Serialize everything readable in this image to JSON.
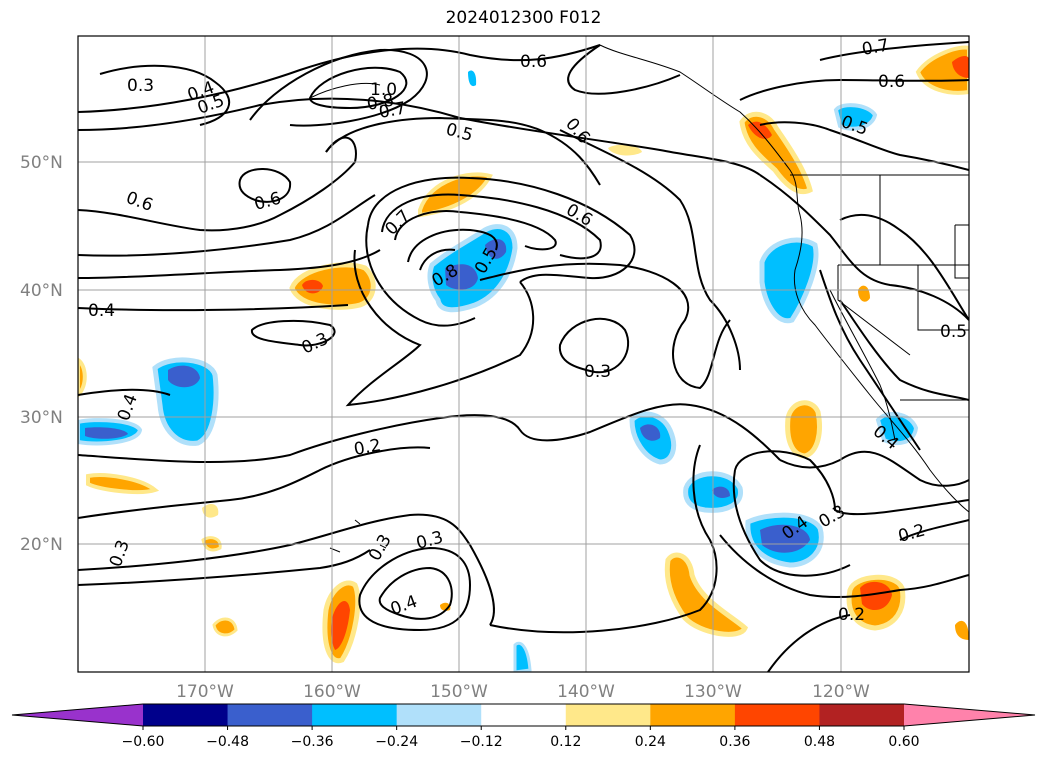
{
  "title": "2024012300 F012",
  "lat_labels": [
    "50°N",
    "40°N",
    "30°N",
    "20°N"
  ],
  "lon_labels": [
    "170°W",
    "160°W",
    "150°W",
    "140°W",
    "130°W",
    "120°W"
  ],
  "contour_labels": [
    "0.3",
    "0.4",
    "0.5",
    "1.0",
    "0.8",
    "0.7",
    "0.6",
    "0.5",
    "0.6",
    "0.7",
    "0.6",
    "0.5",
    "0.6",
    "0.6",
    "0.7",
    "0.6",
    "0.8",
    "0.5",
    "0.4",
    "0.3",
    "0.3",
    "0.5",
    "0.4",
    "0.2",
    "0.3",
    "0.4",
    "0.3",
    "0.4",
    "0.3",
    "0.2",
    "0.2",
    "0.4",
    "0.3"
  ],
  "colorbar": {
    "ticks": [
      "−0.60",
      "−0.48",
      "−0.36",
      "−0.24",
      "−0.12",
      "0.12",
      "0.24",
      "0.36",
      "0.48",
      "0.60"
    ],
    "colors": [
      "#9932cc",
      "#00008b",
      "#3a5fcd",
      "#00bfff",
      "#b0e0fa",
      "#ffffff",
      "#ffe88a",
      "#ffa500",
      "#ff4500",
      "#b22222",
      "#ff82ab"
    ]
  }
}
